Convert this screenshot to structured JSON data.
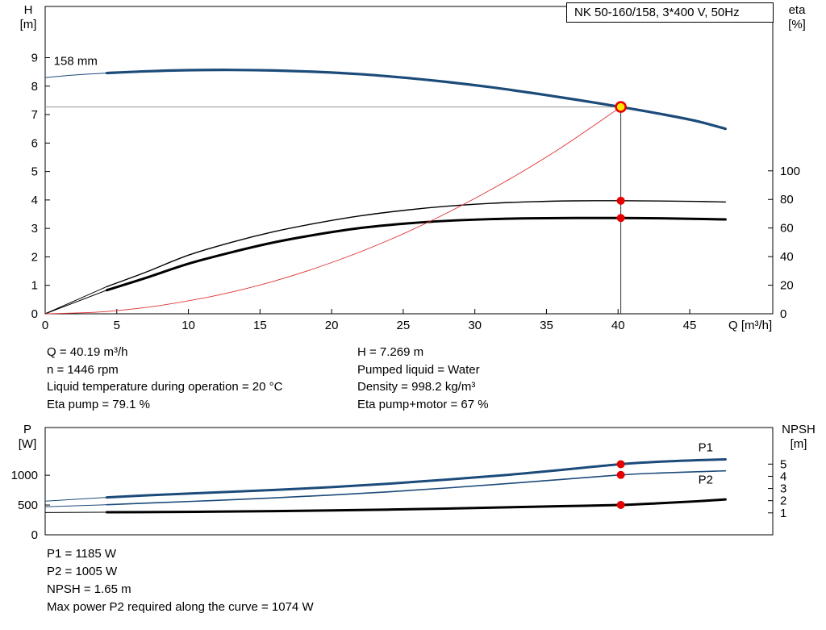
{
  "colors": {
    "curve_blue": "#1c4b7a",
    "curve_black": "#000000",
    "curve_red": "#e03131",
    "label_blue": "#2a6ebb",
    "marker": "#e60000",
    "duty_fill": "#ffe800",
    "duty_ring": "#e60000"
  },
  "info": {
    "left": [
      "Q = 40.19 m³/h",
      "n = 1446 rpm",
      "Liquid temperature during operation = 20 °C",
      "Eta pump = 79.1 %"
    ],
    "right": [
      "H = 7.269 m",
      "Pumped liquid = Water",
      "Density = 998.2 kg/m³",
      "Eta pump+motor = 67 %"
    ]
  },
  "footer": [
    "P1 = 1185 W",
    "P2 = 1005 W",
    "NPSH = 1.65 m",
    "Max power P2 required along the curve = 1074 W"
  ],
  "chart_data": [
    {
      "id": "top",
      "type": "line",
      "title": "NK 50-160/158, 3*400 V, 50Hz",
      "x_label": "Q [m³/h]",
      "x_range": [
        0,
        50.8
      ],
      "x_ticks": [
        0,
        5,
        10,
        15,
        20,
        25,
        30,
        35,
        40,
        45
      ],
      "show_x_tick_labels": true,
      "grid": false,
      "left_axis": {
        "label": "H [m]",
        "label_lines": [
          "H",
          "[m]"
        ],
        "range": [
          0,
          10.8
        ],
        "ticks": [
          0,
          1,
          2,
          3,
          4,
          5,
          6,
          7,
          8,
          9
        ]
      },
      "right_axis": {
        "label": "eta [%]",
        "label_lines": [
          "eta",
          "[%]"
        ],
        "range": [
          0,
          215
        ],
        "ticks": [
          0,
          20,
          40,
          60,
          80,
          100
        ]
      },
      "crosshair": {
        "x": 40.19,
        "y": 7.269
      },
      "series": [
        {
          "name": "head-curve",
          "axis": "left",
          "color": "#1c4b7a",
          "width": 3.2,
          "thin_until": 4.3,
          "points": [
            [
              0,
              8.3
            ],
            [
              2,
              8.39
            ],
            [
              4.3,
              8.46
            ],
            [
              7,
              8.52
            ],
            [
              10,
              8.56
            ],
            [
              13,
              8.57
            ],
            [
              16,
              8.55
            ],
            [
              19,
              8.5
            ],
            [
              22,
              8.42
            ],
            [
              25,
              8.3
            ],
            [
              28,
              8.15
            ],
            [
              31,
              7.97
            ],
            [
              34,
              7.76
            ],
            [
              37,
              7.53
            ],
            [
              40.19,
              7.269
            ],
            [
              43,
              7.02
            ],
            [
              45.5,
              6.77
            ],
            [
              47.5,
              6.5
            ]
          ]
        },
        {
          "name": "eta-pump-curve",
          "axis": "right",
          "color": "#000000",
          "width": 1.4,
          "thin_until": 4.3,
          "points": [
            [
              0,
              0
            ],
            [
              4.3,
              19
            ],
            [
              7,
              29
            ],
            [
              10,
              41
            ],
            [
              13,
              50
            ],
            [
              16,
              57.5
            ],
            [
              19,
              63.5
            ],
            [
              22,
              68.5
            ],
            [
              25,
              72.3
            ],
            [
              28,
              75.2
            ],
            [
              31,
              77.2
            ],
            [
              34,
              78.4
            ],
            [
              37,
              79
            ],
            [
              40.19,
              79.1
            ],
            [
              43,
              78.9
            ],
            [
              45.5,
              78.6
            ],
            [
              47.5,
              78.2
            ]
          ]
        },
        {
          "name": "eta-pump-motor-curve",
          "axis": "right",
          "color": "#000000",
          "width": 3,
          "thin_until": 4.3,
          "points": [
            [
              0,
              0
            ],
            [
              4.3,
              16.5
            ],
            [
              7,
              25
            ],
            [
              10,
              35
            ],
            [
              13,
              43
            ],
            [
              16,
              50
            ],
            [
              19,
              55.5
            ],
            [
              22,
              60
            ],
            [
              25,
              63
            ],
            [
              28,
              65
            ],
            [
              31,
              66.2
            ],
            [
              34,
              66.8
            ],
            [
              37,
              67
            ],
            [
              40.19,
              67
            ],
            [
              43,
              66.8
            ],
            [
              45.5,
              66.4
            ],
            [
              47.5,
              66
            ]
          ]
        },
        {
          "name": "system-curve",
          "axis": "left",
          "color": "#e03131",
          "width": 0.9,
          "points": [
            [
              0,
              0
            ],
            [
              4,
              0.07
            ],
            [
              8,
              0.29
            ],
            [
              12,
              0.65
            ],
            [
              16,
              1.15
            ],
            [
              20,
              1.8
            ],
            [
              24,
              2.59
            ],
            [
              28,
              3.53
            ],
            [
              32,
              4.61
            ],
            [
              36,
              5.83
            ],
            [
              40.19,
              7.269
            ]
          ]
        }
      ],
      "markers": [
        {
          "name": "duty-point",
          "x": 40.19,
          "value": 7.269,
          "axis": "left",
          "style": "duty"
        },
        {
          "name": "eta-pump-point",
          "x": 40.19,
          "value": 79.1,
          "axis": "right",
          "style": "dot"
        },
        {
          "name": "eta-pump-motor-point",
          "x": 40.19,
          "value": 67,
          "axis": "right",
          "style": "dot"
        }
      ],
      "annotations": [
        {
          "name": "impeller-diameter-label",
          "text": "158 mm",
          "x": 0.6,
          "y": 8.75,
          "axis": "left",
          "color": "#000000"
        }
      ]
    },
    {
      "id": "bottom",
      "type": "line",
      "title": "",
      "x_label": "",
      "x_range": [
        0,
        50.8
      ],
      "x_ticks": [],
      "show_x_tick_labels": false,
      "grid": false,
      "left_axis": {
        "label": "P [W]",
        "label_lines": [
          "P",
          "[W]"
        ],
        "range": [
          0,
          1800
        ],
        "ticks": [
          0,
          500,
          1000
        ]
      },
      "right_axis": {
        "label": "NPSH [m]",
        "label_lines": [
          "NPSH",
          "[m]"
        ],
        "range": [
          -0.8,
          8
        ],
        "ticks": [
          1,
          2,
          3,
          4,
          5
        ]
      },
      "series": [
        {
          "name": "p1-curve",
          "axis": "left",
          "color": "#1c4b7a",
          "width": 3,
          "thin_until": 4.3,
          "points": [
            [
              0,
              565
            ],
            [
              4.3,
              628
            ],
            [
              8,
              672
            ],
            [
              12,
              712
            ],
            [
              16,
              752
            ],
            [
              20,
              800
            ],
            [
              24,
              858
            ],
            [
              28,
              925
            ],
            [
              32,
              1000
            ],
            [
              36,
              1088
            ],
            [
              40.19,
              1185
            ],
            [
              43,
              1228
            ],
            [
              45.5,
              1252
            ],
            [
              47.5,
              1266
            ]
          ]
        },
        {
          "name": "p2-curve",
          "axis": "left",
          "color": "#1c4b7a",
          "width": 1.6,
          "thin_until": 4.3,
          "points": [
            [
              0,
              470
            ],
            [
              4.3,
              505
            ],
            [
              8,
              540
            ],
            [
              12,
              578
            ],
            [
              16,
              620
            ],
            [
              20,
              668
            ],
            [
              24,
              722
            ],
            [
              28,
              785
            ],
            [
              32,
              855
            ],
            [
              36,
              928
            ],
            [
              40.19,
              1005
            ],
            [
              43,
              1038
            ],
            [
              45.5,
              1058
            ],
            [
              47.5,
              1074
            ]
          ]
        },
        {
          "name": "npsh-curve",
          "axis": "right",
          "color": "#000000",
          "width": 3,
          "thin_until": 4.3,
          "points": [
            [
              0,
              1.03
            ],
            [
              4.3,
              1.05
            ],
            [
              8,
              1.07
            ],
            [
              12,
              1.1
            ],
            [
              16,
              1.14
            ],
            [
              20,
              1.2
            ],
            [
              24,
              1.27
            ],
            [
              28,
              1.35
            ],
            [
              32,
              1.45
            ],
            [
              36,
              1.55
            ],
            [
              40.19,
              1.65
            ],
            [
              43,
              1.8
            ],
            [
              45.5,
              1.95
            ],
            [
              47.5,
              2.1
            ]
          ]
        }
      ],
      "markers": [
        {
          "name": "p1-point",
          "x": 40.19,
          "value": 1185,
          "axis": "left",
          "style": "dot"
        },
        {
          "name": "p2-point",
          "x": 40.19,
          "value": 1005,
          "axis": "left",
          "style": "dot"
        },
        {
          "name": "npsh-point",
          "x": 40.19,
          "value": 1.65,
          "axis": "right",
          "style": "dot"
        }
      ],
      "annotations": [
        {
          "name": "p1-label",
          "text": "P1",
          "x": 45.6,
          "y": 1400,
          "axis": "left",
          "color": "#2a6ebb"
        },
        {
          "name": "p2-label",
          "text": "P2",
          "x": 45.6,
          "y": 860,
          "axis": "left",
          "color": "#2a6ebb"
        }
      ]
    }
  ]
}
